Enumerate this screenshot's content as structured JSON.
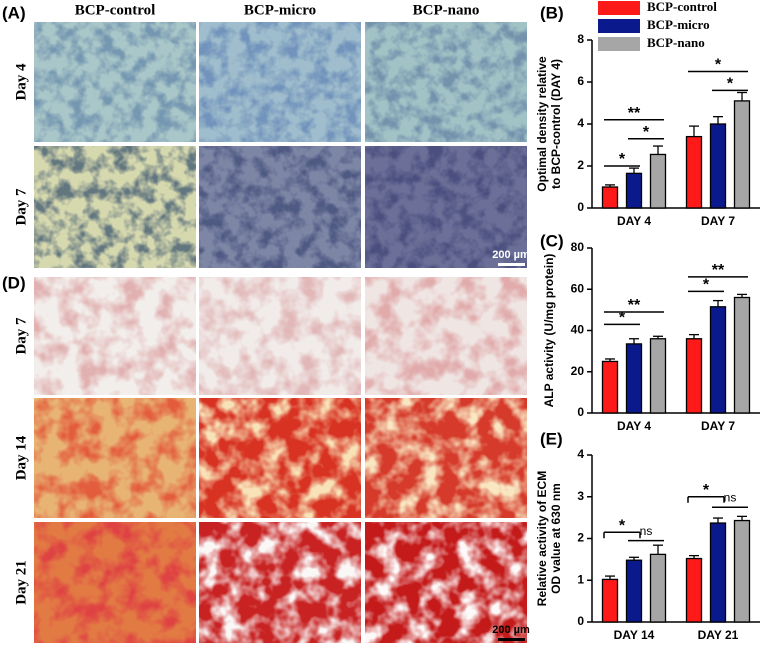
{
  "panel_labels": [
    "(A)",
    "(B)",
    "(C)",
    "(D)",
    "(E)"
  ],
  "image_grid_a": {
    "columns": [
      "BCP-control",
      "BCP-micro",
      "BCP-nano"
    ],
    "rows": [
      "Day 4",
      "Day 7"
    ],
    "scale_bar": "200 µm"
  },
  "image_grid_d": {
    "rows": [
      "Day 7",
      "Day 14",
      "Day 21"
    ],
    "scale_bar": "200 µm"
  },
  "chart_data": [
    {
      "type": "bar",
      "y_label": [
        "Optimal density relative",
        "to BCP-control (DAY 4)"
      ],
      "categories": [
        "DAY 4",
        "DAY 7"
      ],
      "series": [
        {
          "name": "BCP-control",
          "color": "#ff1a1a",
          "values": [
            1.0,
            3.4
          ],
          "errors": [
            0.1,
            0.5
          ]
        },
        {
          "name": "BCP-micro",
          "color": "#0a1a8c",
          "values": [
            1.65,
            4.0
          ],
          "errors": [
            0.25,
            0.35
          ]
        },
        {
          "name": "BCP-nano",
          "color": "#a6a6a6",
          "values": [
            2.55,
            5.1
          ],
          "errors": [
            0.4,
            0.4
          ]
        }
      ],
      "ylim": [
        0,
        8
      ],
      "yticks": [
        0,
        2,
        4,
        6,
        8
      ],
      "annotations": [
        "*",
        "**",
        "*",
        "*",
        "*"
      ]
    },
    {
      "type": "bar",
      "y_label": [
        "ALP activity (U/mg protein)"
      ],
      "categories": [
        "DAY 4",
        "DAY 7"
      ],
      "series": [
        {
          "color": "#ff1a1a",
          "values": [
            25,
            36
          ],
          "errors": [
            1.2,
            2
          ]
        },
        {
          "color": "#0a1a8c",
          "values": [
            33.5,
            51.5
          ],
          "errors": [
            2.5,
            3
          ]
        },
        {
          "color": "#a6a6a6",
          "values": [
            36,
            56
          ],
          "errors": [
            1.2,
            1.5
          ]
        }
      ],
      "ylim": [
        0,
        80
      ],
      "yticks": [
        0,
        20,
        40,
        60,
        80
      ],
      "annotations": [
        "*",
        "**",
        "*",
        "**"
      ]
    },
    {
      "type": "bar",
      "y_label": [
        "Relative activity of ECM",
        "OD value at 630 nm"
      ],
      "categories": [
        "DAY 14",
        "DAY 21"
      ],
      "series": [
        {
          "color": "#ff1a1a",
          "values": [
            1.02,
            1.52
          ],
          "errors": [
            0.08,
            0.07
          ]
        },
        {
          "color": "#0a1a8c",
          "values": [
            1.48,
            2.37
          ],
          "errors": [
            0.07,
            0.12
          ]
        },
        {
          "color": "#a6a6a6",
          "values": [
            1.62,
            2.43
          ],
          "errors": [
            0.22,
            0.1
          ]
        }
      ],
      "ylim": [
        0,
        4
      ],
      "yticks": [
        0,
        1,
        2,
        3,
        4
      ],
      "annotations": [
        "*",
        "ns",
        "*",
        "ns"
      ]
    }
  ]
}
